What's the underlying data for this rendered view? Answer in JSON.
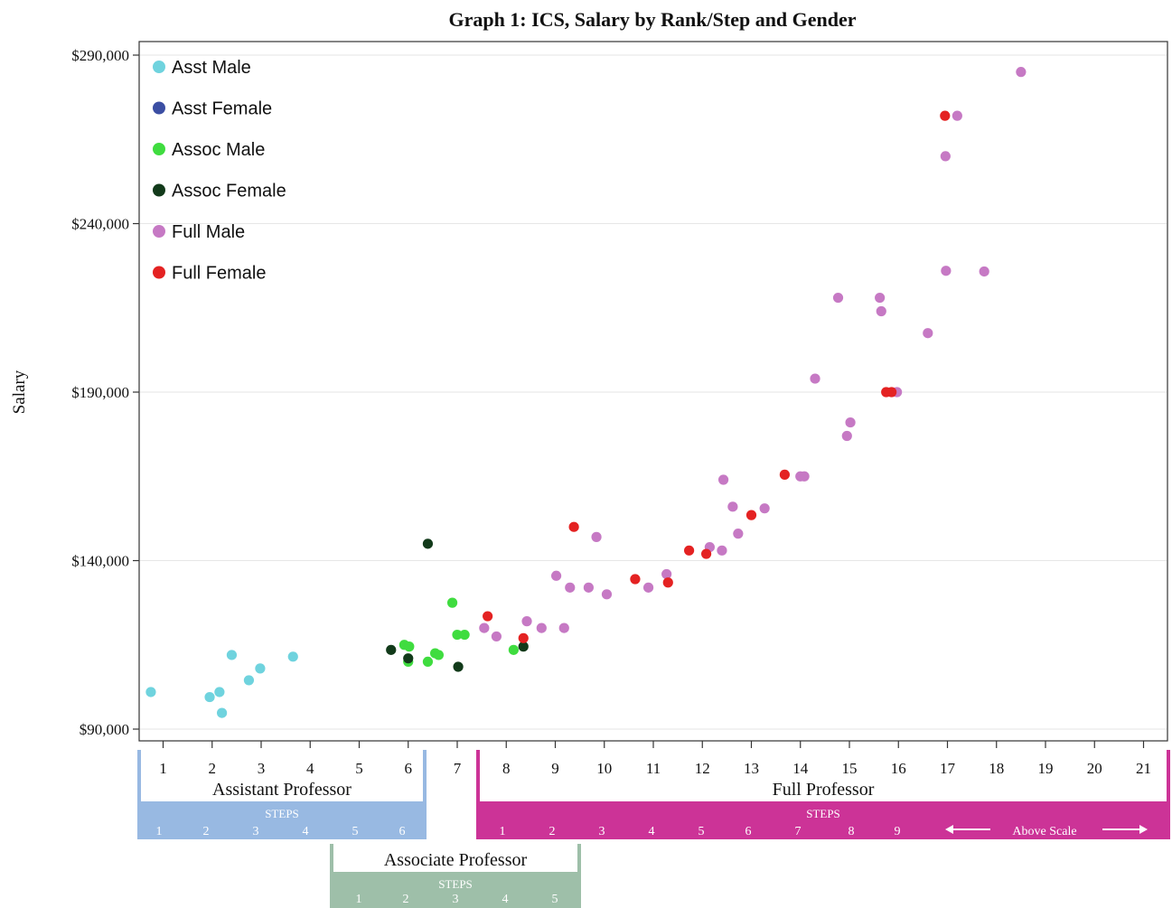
{
  "chart_data": {
    "type": "scatter",
    "title": "Graph 1: ICS, Salary by Rank/Step and Gender",
    "ylabel": "Salary",
    "xlabel": "",
    "xlim": [
      0.75,
      21.5
    ],
    "ylim": [
      87000,
      293000
    ],
    "y_ticks": [
      90000,
      140000,
      190000,
      240000,
      290000
    ],
    "y_tick_labels": [
      "$90,000",
      "$140,000",
      "$190,000",
      "$240,000",
      "$290,000"
    ],
    "x_ticks": [
      1,
      2,
      3,
      4,
      5,
      6,
      7,
      8,
      9,
      10,
      11,
      12,
      13,
      14,
      15,
      16,
      17,
      18,
      19,
      20,
      21
    ],
    "x_tick_labels": [
      "1",
      "2",
      "3",
      "4",
      "5",
      "6",
      "7",
      "8",
      "9",
      "10",
      "11",
      "12",
      "13",
      "14",
      "15",
      "16",
      "17",
      "18",
      "19",
      "20",
      "21"
    ],
    "grid": "horizontal",
    "legend_position": "top-left",
    "series": [
      {
        "name": "Asst Male",
        "color": "#6fd3de",
        "points": [
          [
            0.75,
            101000
          ],
          [
            1.95,
            99500
          ],
          [
            2.15,
            101000
          ],
          [
            2.2,
            94800
          ],
          [
            2.4,
            112000
          ],
          [
            2.75,
            104500
          ],
          [
            2.98,
            108000
          ],
          [
            3.65,
            111500
          ]
        ]
      },
      {
        "name": "Asst Female",
        "color": "#3b4ea3",
        "points": []
      },
      {
        "name": "Assoc Male",
        "color": "#3fdc3f",
        "points": [
          [
            5.92,
            115000
          ],
          [
            6.02,
            114500
          ],
          [
            6.0,
            110000
          ],
          [
            6.4,
            110000
          ],
          [
            6.55,
            112500
          ],
          [
            6.62,
            112000
          ],
          [
            6.9,
            127500
          ],
          [
            7.0,
            118000
          ],
          [
            7.15,
            118000
          ],
          [
            8.15,
            113500
          ]
        ]
      },
      {
        "name": "Assoc Female",
        "color": "#123a1a",
        "points": [
          [
            5.65,
            113500
          ],
          [
            6.0,
            111000
          ],
          [
            6.4,
            145000
          ],
          [
            7.02,
            108500
          ],
          [
            8.35,
            114500
          ]
        ]
      },
      {
        "name": "Full Male",
        "color": "#c679c4",
        "points": [
          [
            7.55,
            120000
          ],
          [
            7.8,
            117500
          ],
          [
            8.42,
            122000
          ],
          [
            8.72,
            120000
          ],
          [
            9.02,
            135500
          ],
          [
            9.18,
            120000
          ],
          [
            9.3,
            132000
          ],
          [
            9.68,
            132000
          ],
          [
            9.84,
            147000
          ],
          [
            10.05,
            130000
          ],
          [
            10.9,
            132000
          ],
          [
            11.27,
            136000
          ],
          [
            12.15,
            144000
          ],
          [
            12.4,
            143000
          ],
          [
            12.43,
            164000
          ],
          [
            12.62,
            156000
          ],
          [
            12.73,
            148000
          ],
          [
            13.27,
            155500
          ],
          [
            14.0,
            165000
          ],
          [
            14.08,
            165000
          ],
          [
            14.3,
            194000
          ],
          [
            14.77,
            218000
          ],
          [
            14.95,
            177000
          ],
          [
            15.02,
            181000
          ],
          [
            15.62,
            218000
          ],
          [
            15.65,
            214000
          ],
          [
            15.97,
            190000
          ],
          [
            16.6,
            207500
          ],
          [
            16.96,
            260000
          ],
          [
            16.97,
            226000
          ],
          [
            17.2,
            272000
          ],
          [
            17.75,
            225800
          ],
          [
            18.5,
            285000
          ]
        ]
      },
      {
        "name": "Full Female",
        "color": "#e42222",
        "points": [
          [
            7.62,
            123500
          ],
          [
            8.35,
            117000
          ],
          [
            9.38,
            150000
          ],
          [
            10.63,
            134500
          ],
          [
            11.3,
            133500
          ],
          [
            11.73,
            143000
          ],
          [
            12.08,
            142000
          ],
          [
            13.0,
            153500
          ],
          [
            13.68,
            165500
          ],
          [
            15.75,
            190000
          ],
          [
            15.86,
            190000
          ],
          [
            16.95,
            272000
          ]
        ]
      }
    ]
  },
  "scale_bands": {
    "assistant": {
      "title": "Assistant Professor",
      "steps_label": "STEPS",
      "steps": [
        "1",
        "2",
        "3",
        "4",
        "5",
        "6"
      ],
      "color": "#98b9e2"
    },
    "associate": {
      "title": "Associate Professor",
      "steps_label": "STEPS",
      "steps": [
        "1",
        "2",
        "3",
        "4",
        "5"
      ],
      "color": "#9ebfa9"
    },
    "full": {
      "title": "Full Professor",
      "steps_label": "STEPS",
      "steps": [
        "1",
        "2",
        "3",
        "4",
        "5",
        "6",
        "7",
        "8",
        "9"
      ],
      "above_scale_label": "Above Scale",
      "color": "#cc3397"
    }
  }
}
